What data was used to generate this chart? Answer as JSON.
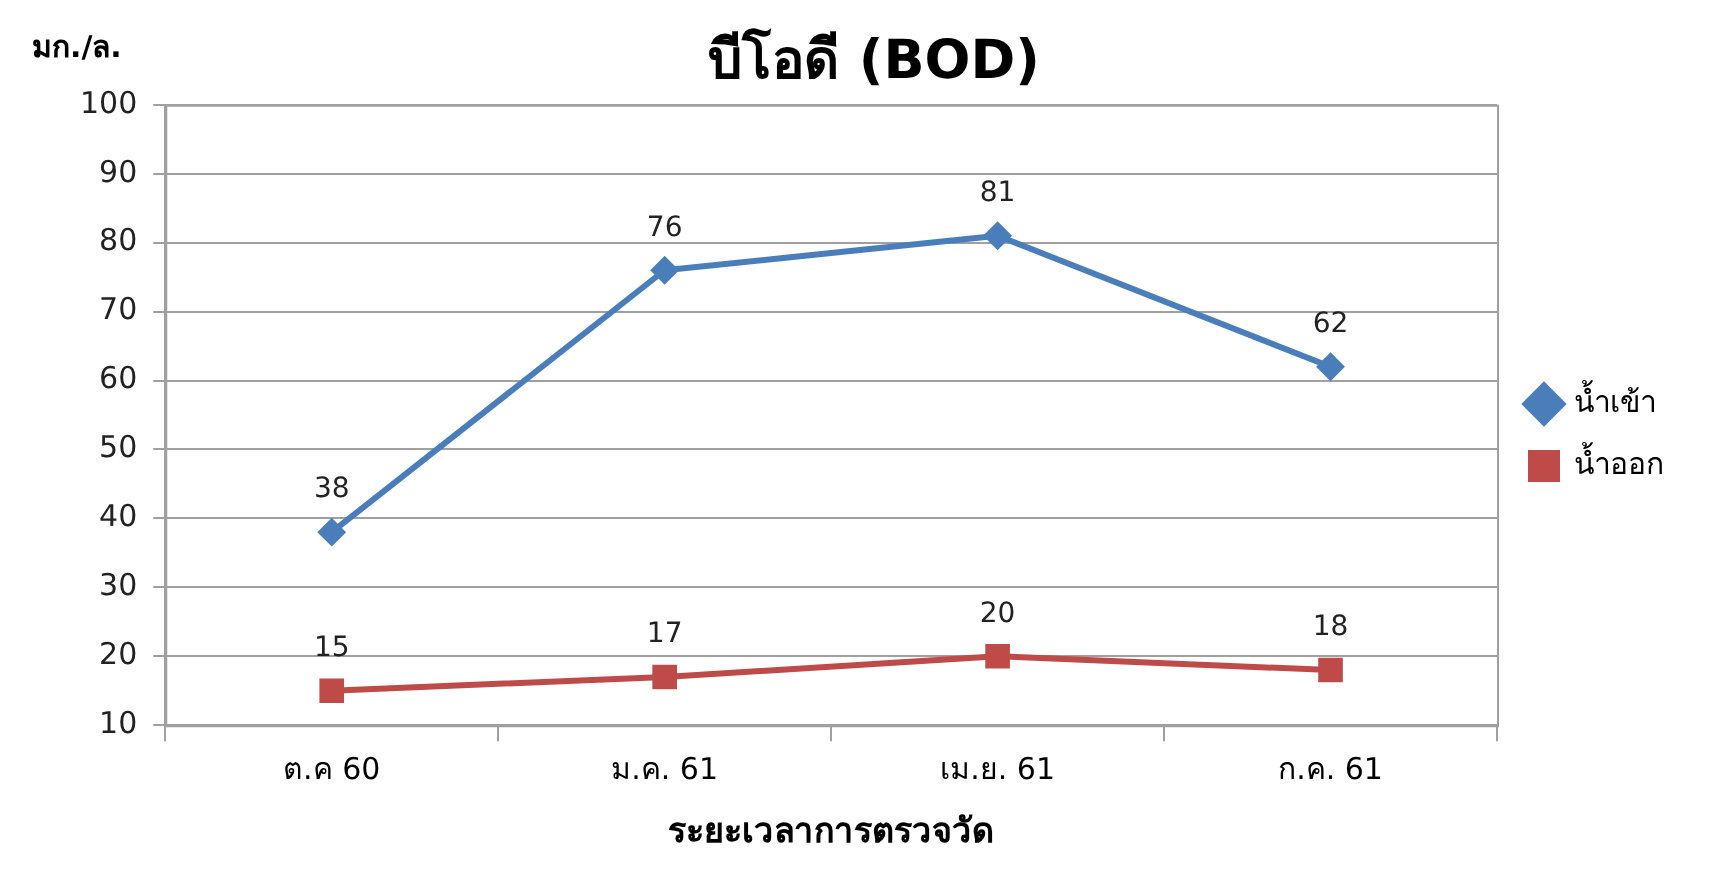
{
  "chart_data": {
    "type": "line",
    "title": "บีโอดี (BOD)",
    "ylabel": "มก./ล.",
    "xlabel": "ระยะเวลาการตรวจวัด",
    "categories": [
      "ต.ค 60",
      "ม.ค. 61",
      "เม.ย. 61",
      "ก.ค. 61"
    ],
    "series": [
      {
        "name": "น้ำเข้า",
        "color": "#4a7ebb",
        "values": [
          38,
          76,
          81,
          62
        ],
        "marker": "diamond"
      },
      {
        "name": "น้ำออก",
        "color": "#be4b48",
        "values": [
          15,
          17,
          20,
          18
        ],
        "marker": "square"
      }
    ],
    "ylim": [
      10,
      100
    ],
    "yticks": [
      10,
      20,
      30,
      40,
      50,
      60,
      70,
      80,
      90,
      100
    ],
    "grid": "y",
    "legend": "right",
    "data_labels": true,
    "line_style": "solid"
  }
}
